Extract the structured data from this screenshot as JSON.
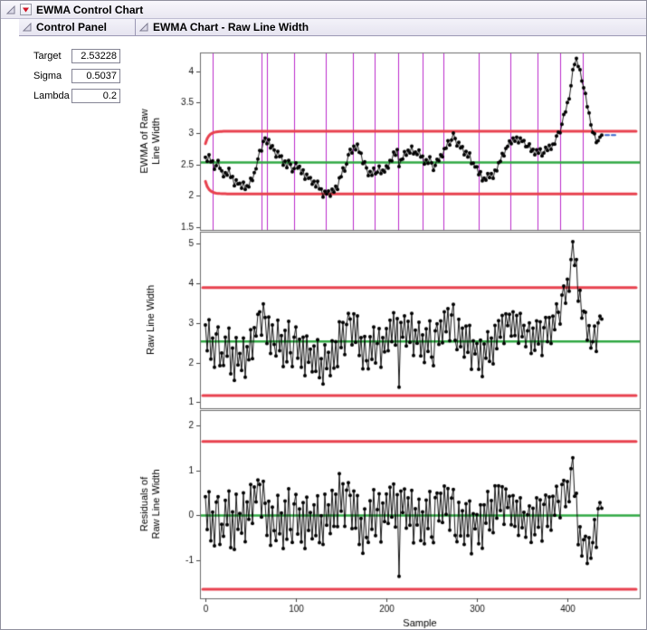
{
  "window": {
    "title": "EWMA Control Chart"
  },
  "control_panel": {
    "title": "Control Panel",
    "fields": [
      {
        "label": "Target",
        "value": "2.53228"
      },
      {
        "label": "Sigma",
        "value": "0.5037"
      },
      {
        "label": "Lambda",
        "value": "0.2"
      }
    ]
  },
  "report": {
    "title": "EWMA Chart - Raw Line Width"
  },
  "chart_data": {
    "type": "line",
    "title": "EWMA Chart - Raw Line Width",
    "xlabel": "Sample",
    "x_ticks": [
      0,
      100,
      200,
      300,
      400
    ],
    "x_tick_labels": [
      "0",
      "100",
      "200",
      "300",
      "400"
    ],
    "xlim": [
      -6,
      480
    ],
    "sample_step": 2,
    "lambda": 0.2,
    "target": 2.53228,
    "sigma": 0.5037,
    "legend": "none",
    "grid": false,
    "colors": {
      "limit": "#e8414e",
      "center": "#2fa843",
      "phase": "#bb29cc",
      "series": "#000000",
      "forecast": "#3a66cc"
    },
    "panels": [
      {
        "name": "ewma",
        "ylabel_lines": [
          "EWMA of Raw",
          "Line Width"
        ],
        "ylim": [
          1.45,
          4.3
        ],
        "yticks": [
          1.5,
          2,
          2.5,
          3,
          3.5,
          4
        ],
        "ytick_labels": [
          "1.5",
          "2",
          "2.5",
          "3",
          "3.5",
          "4"
        ],
        "center": 2.53228,
        "ucl_asymptote": 3.036,
        "lcl_asymptote": 2.029,
        "limit_type": "ewma",
        "series_note": "EWMA computed from raw_values with lambda and target",
        "phase_lines": [
          8,
          62,
          68,
          98,
          133,
          163,
          187,
          213,
          240,
          263,
          302,
          337,
          367,
          392,
          417
        ]
      },
      {
        "name": "raw",
        "ylabel_lines": [
          "Raw Line Width"
        ],
        "ylim": [
          0.85,
          5.3
        ],
        "yticks": [
          1,
          2,
          3,
          4,
          5
        ],
        "ytick_labels": [
          "1",
          "2",
          "3",
          "4",
          "5"
        ],
        "center": 2.53228,
        "ucl": 3.89,
        "lcl": 1.17,
        "limit_type": "flat"
      },
      {
        "name": "residuals",
        "ylabel_lines": [
          "Residuals of",
          "Raw Line Width"
        ],
        "ylim": [
          -1.85,
          2.35
        ],
        "yticks": [
          -1,
          0,
          1,
          2
        ],
        "ytick_labels": [
          "-1",
          "0",
          "1",
          "2"
        ],
        "center": 0,
        "ucl": 1.65,
        "lcl": -1.65,
        "limit_type": "flat",
        "series_note": "one-step prediction residuals: raw minus prior EWMA"
      }
    ],
    "raw_values": [
      2.95,
      2.3,
      3.08,
      2.09,
      2.62,
      1.88,
      2.72,
      2.9,
      1.92,
      2.24,
      1.93,
      2.64,
      2.16,
      2.87,
      1.72,
      2.37,
      1.55,
      2.63,
      1.94,
      2.23,
      1.8,
      2.62,
      1.63,
      2.4,
      2.07,
      2.83,
      2.1,
      2.88,
      2.67,
      3.22,
      3.28,
      2.69,
      3.48,
      3.14,
      2.48,
      3.15,
      2.23,
      2.95,
      2.46,
      2.17,
      3.07,
      2.3,
      2.68,
      1.9,
      2.81,
      2.02,
      3.04,
      2.25,
      1.9,
      2.64,
      2.9,
      2.11,
      2.59,
      1.88,
      2.64,
      1.67,
      2.67,
      2.01,
      2.34,
      1.77,
      2.42,
      1.78,
      2.58,
      1.62,
      2.1,
      1.46,
      2.45,
      1.85,
      2.26,
      1.67,
      2.55,
      1.86,
      2.53,
      1.9,
      3.03,
      2.38,
      3.01,
      2.2,
      2.96,
      3.24,
      3.1,
      2.45,
      3.23,
      2.51,
      3.18,
      2.18,
      2.63,
      1.84,
      2.66,
      2.05,
      1.84,
      2.65,
      2.08,
      2.9,
      1.99,
      2.48,
      2.86,
      1.88,
      2.63,
      2.27,
      2.86,
      2.3,
      3.07,
      2.53,
      3.26,
      2.44,
      3.11,
      1.38,
      3.01,
      2.64,
      3.18,
      2.42,
      3.04,
      2.51,
      3.24,
      2.18,
      2.82,
      2.49,
      3.02,
      2.17,
      2.7,
      2.0,
      2.85,
      2.28,
      3.05,
      2.14,
      1.92,
      2.8,
      2.98,
      2.46,
      3.05,
      2.5,
      3.28,
      2.78,
      3.36,
      2.55,
      3.2,
      3.47,
      2.56,
      2.33,
      3.09,
      2.4,
      2.87,
      2.14,
      2.92,
      2.26,
      2.94,
      1.83,
      2.55,
      2.22,
      2.48,
      1.83,
      2.57,
      1.65,
      2.47,
      2.11,
      2.78,
      2.03,
      2.62,
      1.97,
      2.94,
      2.35,
      3.06,
      2.64,
      3.19,
      2.48,
      3.23,
      2.93,
      3.22,
      2.67,
      3.28,
      2.68,
      3.19,
      2.49,
      3.24,
      2.65,
      2.94,
      2.4,
      2.8,
      3.0,
      2.23,
      2.87,
      2.31,
      3.05,
      2.47,
      3.03,
      2.18,
      2.88,
      3.14,
      2.53,
      3.14,
      2.48,
      3.17,
      2.83,
      3.48,
      3.27,
      2.97,
      3.7,
      3.93,
      3.5,
      4.1,
      3.8,
      4.6,
      5.05,
      4.45,
      4.6,
      3.55,
      3.82,
      3.12,
      3.3,
      3.27,
      2.57,
      2.93,
      2.37,
      2.53,
      2.92,
      2.28,
      3.0,
      3.17,
      3.1
    ]
  }
}
